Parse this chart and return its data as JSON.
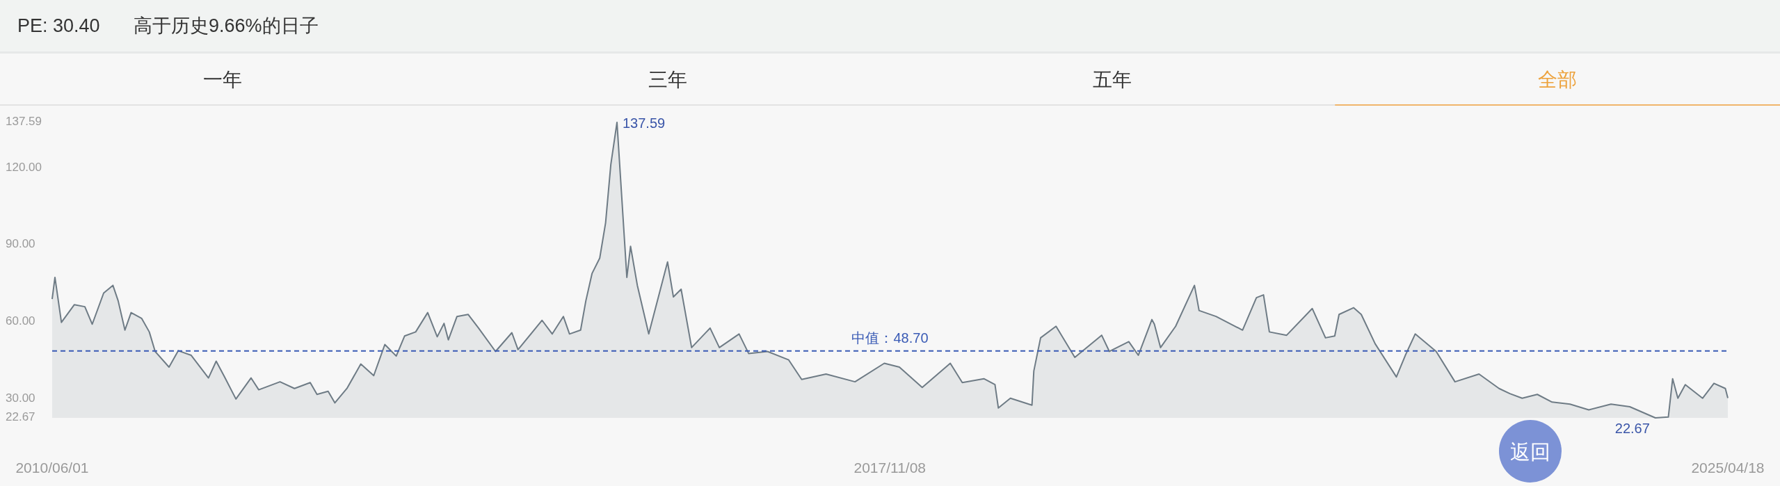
{
  "chart_data": {
    "type": "area",
    "title": "PE: 30.40",
    "subtitle": "高于历史9.66%的日子",
    "color": "#6e7b85",
    "xlim": [
      "2010-06-01",
      "2025-04-18"
    ],
    "xticks": [
      {
        "value": "2010-06-01",
        "label": "2010/06/01"
      },
      {
        "value": "2017-11-08",
        "label": "2017/11/08"
      },
      {
        "value": "2025-04-18",
        "label": "2025/04/18"
      }
    ],
    "ylim": [
      22.67,
      137.59
    ],
    "yticks": [
      22.67,
      {
        "value": 30,
        "label": "30.00"
      },
      {
        "value": 60,
        "label": "60.00"
      },
      {
        "value": 90,
        "label": "90.00"
      },
      {
        "value": 120,
        "label": "120.00"
      },
      137.59
    ],
    "ref_lines": [
      {
        "axis": "y",
        "value": 48.7,
        "label": "中值：48.70",
        "color": "#3a5bb5",
        "line_style": "dashed"
      }
    ],
    "annotations": [
      "一年",
      "三年",
      "五年",
      "全部",
      "返回",
      {
        "text": "137.59",
        "x": "2015-06-07",
        "y": 137.59
      },
      {
        "text": "22.67",
        "x": "2024-08-26",
        "y": 22.67
      }
    ],
    "x": [
      "2010-06-01",
      "2010-06-10",
      "2010-07-01",
      "2010-08-12",
      "2010-09-15",
      "2010-10-09",
      "2010-11-15",
      "2010-12-15",
      "2011-01-01",
      "2011-01-23",
      "2011-02-12",
      "2011-03-18",
      "2011-04-12",
      "2011-05-01",
      "2011-06-15",
      "2011-07-15",
      "2011-08-26",
      "2011-10-21",
      "2011-11-15",
      "2011-12-12",
      "2012-01-18",
      "2012-03-07",
      "2012-04-01",
      "2012-06-09",
      "2012-07-26",
      "2012-09-15",
      "2012-10-07",
      "2012-11-12",
      "2012-12-04",
      "2013-01-12",
      "2013-02-26",
      "2013-04-09",
      "2013-05-15",
      "2013-06-21",
      "2013-07-18",
      "2013-08-23",
      "2013-10-01",
      "2013-11-01",
      "2013-11-23",
      "2013-12-07",
      "2014-01-04",
      "2014-02-09",
      "2014-03-15",
      "2014-05-09",
      "2014-07-01",
      "2014-07-21",
      "2014-10-07",
      "2014-11-09",
      "2014-12-15",
      "2015-01-04",
      "2015-02-09",
      "2015-02-26",
      "2015-03-18",
      "2015-04-12",
      "2015-05-01",
      "2015-05-18",
      "2015-06-07",
      "2015-07-09",
      "2015-07-21",
      "2015-08-12",
      "2015-09-18",
      "2015-11-18",
      "2015-12-07",
      "2016-01-01",
      "2016-02-04",
      "2016-04-04",
      "2016-05-04",
      "2016-07-07",
      "2016-08-07",
      "2016-10-07",
      "2016-12-15",
      "2017-01-26",
      "2017-04-15",
      "2017-07-18",
      "2017-10-21",
      "2017-12-09",
      "2018-02-21",
      "2018-05-23",
      "2018-07-01",
      "2018-09-09",
      "2018-10-15",
      "2018-10-26",
      "2018-12-04",
      "2019-02-12",
      "2019-02-18",
      "2019-03-12",
      "2019-05-01",
      "2019-07-01",
      "2019-09-26",
      "2019-10-21",
      "2019-12-23",
      "2020-01-23",
      "2020-03-07",
      "2020-03-15",
      "2020-04-04",
      "2020-05-23",
      "2020-07-23",
      "2020-08-07",
      "2020-10-01",
      "2020-12-26",
      "2021-02-09",
      "2021-03-04",
      "2021-03-23",
      "2021-05-18",
      "2021-08-09",
      "2021-09-21",
      "2021-10-21",
      "2021-11-04",
      "2021-12-21",
      "2022-01-15",
      "2022-03-01",
      "2022-05-09",
      "2022-06-07",
      "2022-07-09",
      "2022-09-15",
      "2022-11-15",
      "2023-02-01",
      "2023-04-07",
      "2023-05-12",
      "2023-06-21",
      "2023-08-09",
      "2023-09-26",
      "2023-11-23",
      "2024-01-23",
      "2024-04-04",
      "2024-06-04",
      "2024-08-26",
      "2024-10-07",
      "2024-10-21",
      "2024-11-07",
      "2024-12-01",
      "2025-01-26",
      "2025-03-04",
      "2025-04-10",
      "2025-04-18"
    ],
    "values": [
      68.9,
      77.3,
      59.8,
      66.7,
      65.9,
      59.1,
      71.2,
      74.2,
      68.2,
      56.8,
      63.6,
      61.4,
      56.1,
      48.5,
      42.4,
      48.8,
      47.0,
      38.2,
      44.7,
      38.6,
      30.0,
      38.2,
      33.6,
      36.7,
      34.1,
      36.4,
      31.8,
      33.0,
      28.5,
      34.1,
      43.6,
      39.1,
      51.2,
      46.7,
      54.5,
      56.1,
      63.6,
      54.2,
      59.4,
      53.0,
      62.1,
      62.9,
      57.6,
      48.5,
      55.8,
      49.2,
      60.6,
      55.3,
      62.1,
      55.3,
      56.8,
      68.2,
      78.8,
      84.8,
      98.5,
      121.2,
      137.59,
      77.3,
      89.4,
      74.2,
      55.3,
      83.3,
      69.7,
      72.7,
      50.0,
      57.6,
      50.0,
      55.3,
      47.7,
      48.5,
      45.2,
      37.6,
      39.7,
      36.7,
      43.9,
      42.4,
      34.5,
      43.9,
      36.4,
      37.9,
      35.6,
      26.5,
      30.3,
      27.6,
      40.9,
      53.8,
      58.3,
      46.2,
      54.8,
      48.5,
      52.3,
      47.0,
      60.9,
      59.1,
      50.0,
      58.3,
      74.2,
      64.4,
      62.1,
      56.8,
      69.4,
      70.5,
      56.1,
      54.8,
      65.2,
      53.8,
      54.5,
      62.9,
      65.5,
      62.9,
      51.5,
      38.6,
      47.0,
      55.3,
      48.5,
      36.7,
      39.7,
      34.1,
      32.1,
      30.3,
      31.8,
      28.8,
      28.0,
      25.8,
      28.0,
      27.0,
      22.67,
      23.0,
      37.9,
      30.3,
      35.6,
      30.3,
      36.1,
      34.1,
      30.4
    ]
  }
}
